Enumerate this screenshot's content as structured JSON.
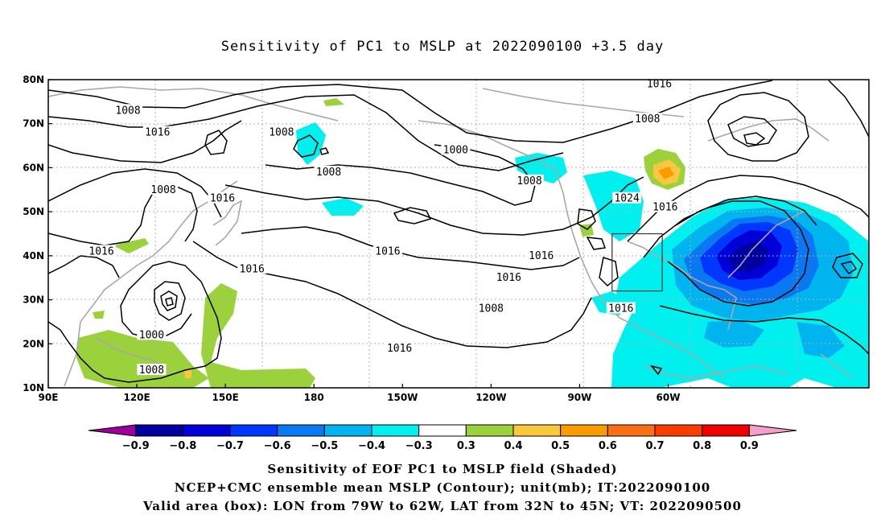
{
  "title": "Sensitivity of PC1 to MSLP at 2022090100 +3.5 day",
  "lat_labels": [
    "80N",
    "70N",
    "60N",
    "50N",
    "40N",
    "30N",
    "20N",
    "10N"
  ],
  "lon_labels": [
    "90E",
    "120E",
    "150E",
    "180",
    "150W",
    "120W",
    "90W",
    "60W"
  ],
  "isobar_labels": [
    {
      "text": "1016",
      "lon": -63,
      "lat": 79
    },
    {
      "text": "1008",
      "lon": 117,
      "lat": 73
    },
    {
      "text": "1008",
      "lon": -67,
      "lat": 71
    },
    {
      "text": "1016",
      "lon": 127,
      "lat": 68
    },
    {
      "text": "1008",
      "lon": 169,
      "lat": 68
    },
    {
      "text": "1000",
      "lon": -132,
      "lat": 64
    },
    {
      "text": "1008",
      "lon": 129,
      "lat": 55
    },
    {
      "text": "1008",
      "lon": 185,
      "lat": 59
    },
    {
      "text": "1008",
      "lon": -107,
      "lat": 57
    },
    {
      "text": "1024",
      "lon": -74,
      "lat": 53
    },
    {
      "text": "1016",
      "lon": -61,
      "lat": 51
    },
    {
      "text": "1016",
      "lon": 149,
      "lat": 53
    },
    {
      "text": "1016",
      "lon": 108,
      "lat": 41
    },
    {
      "text": "1016",
      "lon": -155,
      "lat": 41
    },
    {
      "text": "1016",
      "lon": -103,
      "lat": 40
    },
    {
      "text": "1016",
      "lon": -114,
      "lat": 35
    },
    {
      "text": "1016",
      "lon": 159,
      "lat": 37
    },
    {
      "text": "1008",
      "lon": -120,
      "lat": 28
    },
    {
      "text": "1016",
      "lon": -76,
      "lat": 28
    },
    {
      "text": "1000",
      "lon": 125,
      "lat": 22
    },
    {
      "text": "1016",
      "lon": -151,
      "lat": 19
    },
    {
      "text": "1008",
      "lon": 125,
      "lat": 14
    }
  ],
  "valid_box": {
    "lon_min": -79,
    "lon_max": -62,
    "lat_min": 32,
    "lat_max": 45
  },
  "colorbar": {
    "colors": [
      "#9b009b",
      "#0000a0",
      "#0000d8",
      "#0037ff",
      "#0a78f0",
      "#00b4f0",
      "#00f0f0",
      "#ffffff",
      "#9bd23c",
      "#fac83c",
      "#fa9b00",
      "#fa6e14",
      "#fa3c00",
      "#f00000",
      "#f5a0c8"
    ],
    "labels": [
      "−0.9",
      "−0.8",
      "−0.7",
      "−0.6",
      "−0.5",
      "−0.4",
      "−0.3",
      "0.3",
      "0.4",
      "0.5",
      "0.6",
      "0.7",
      "0.8",
      "0.9"
    ]
  },
  "captions": [
    "Sensitivity of EOF PC1 to MSLP field (Shaded)",
    "NCEP+CMC ensemble mean MSLP (Contour); unit(mb); IT:2022090100",
    "Valid area (box): LON from 79W to 62W, LAT from 32N to 45N; VT: 2022090500"
  ]
}
